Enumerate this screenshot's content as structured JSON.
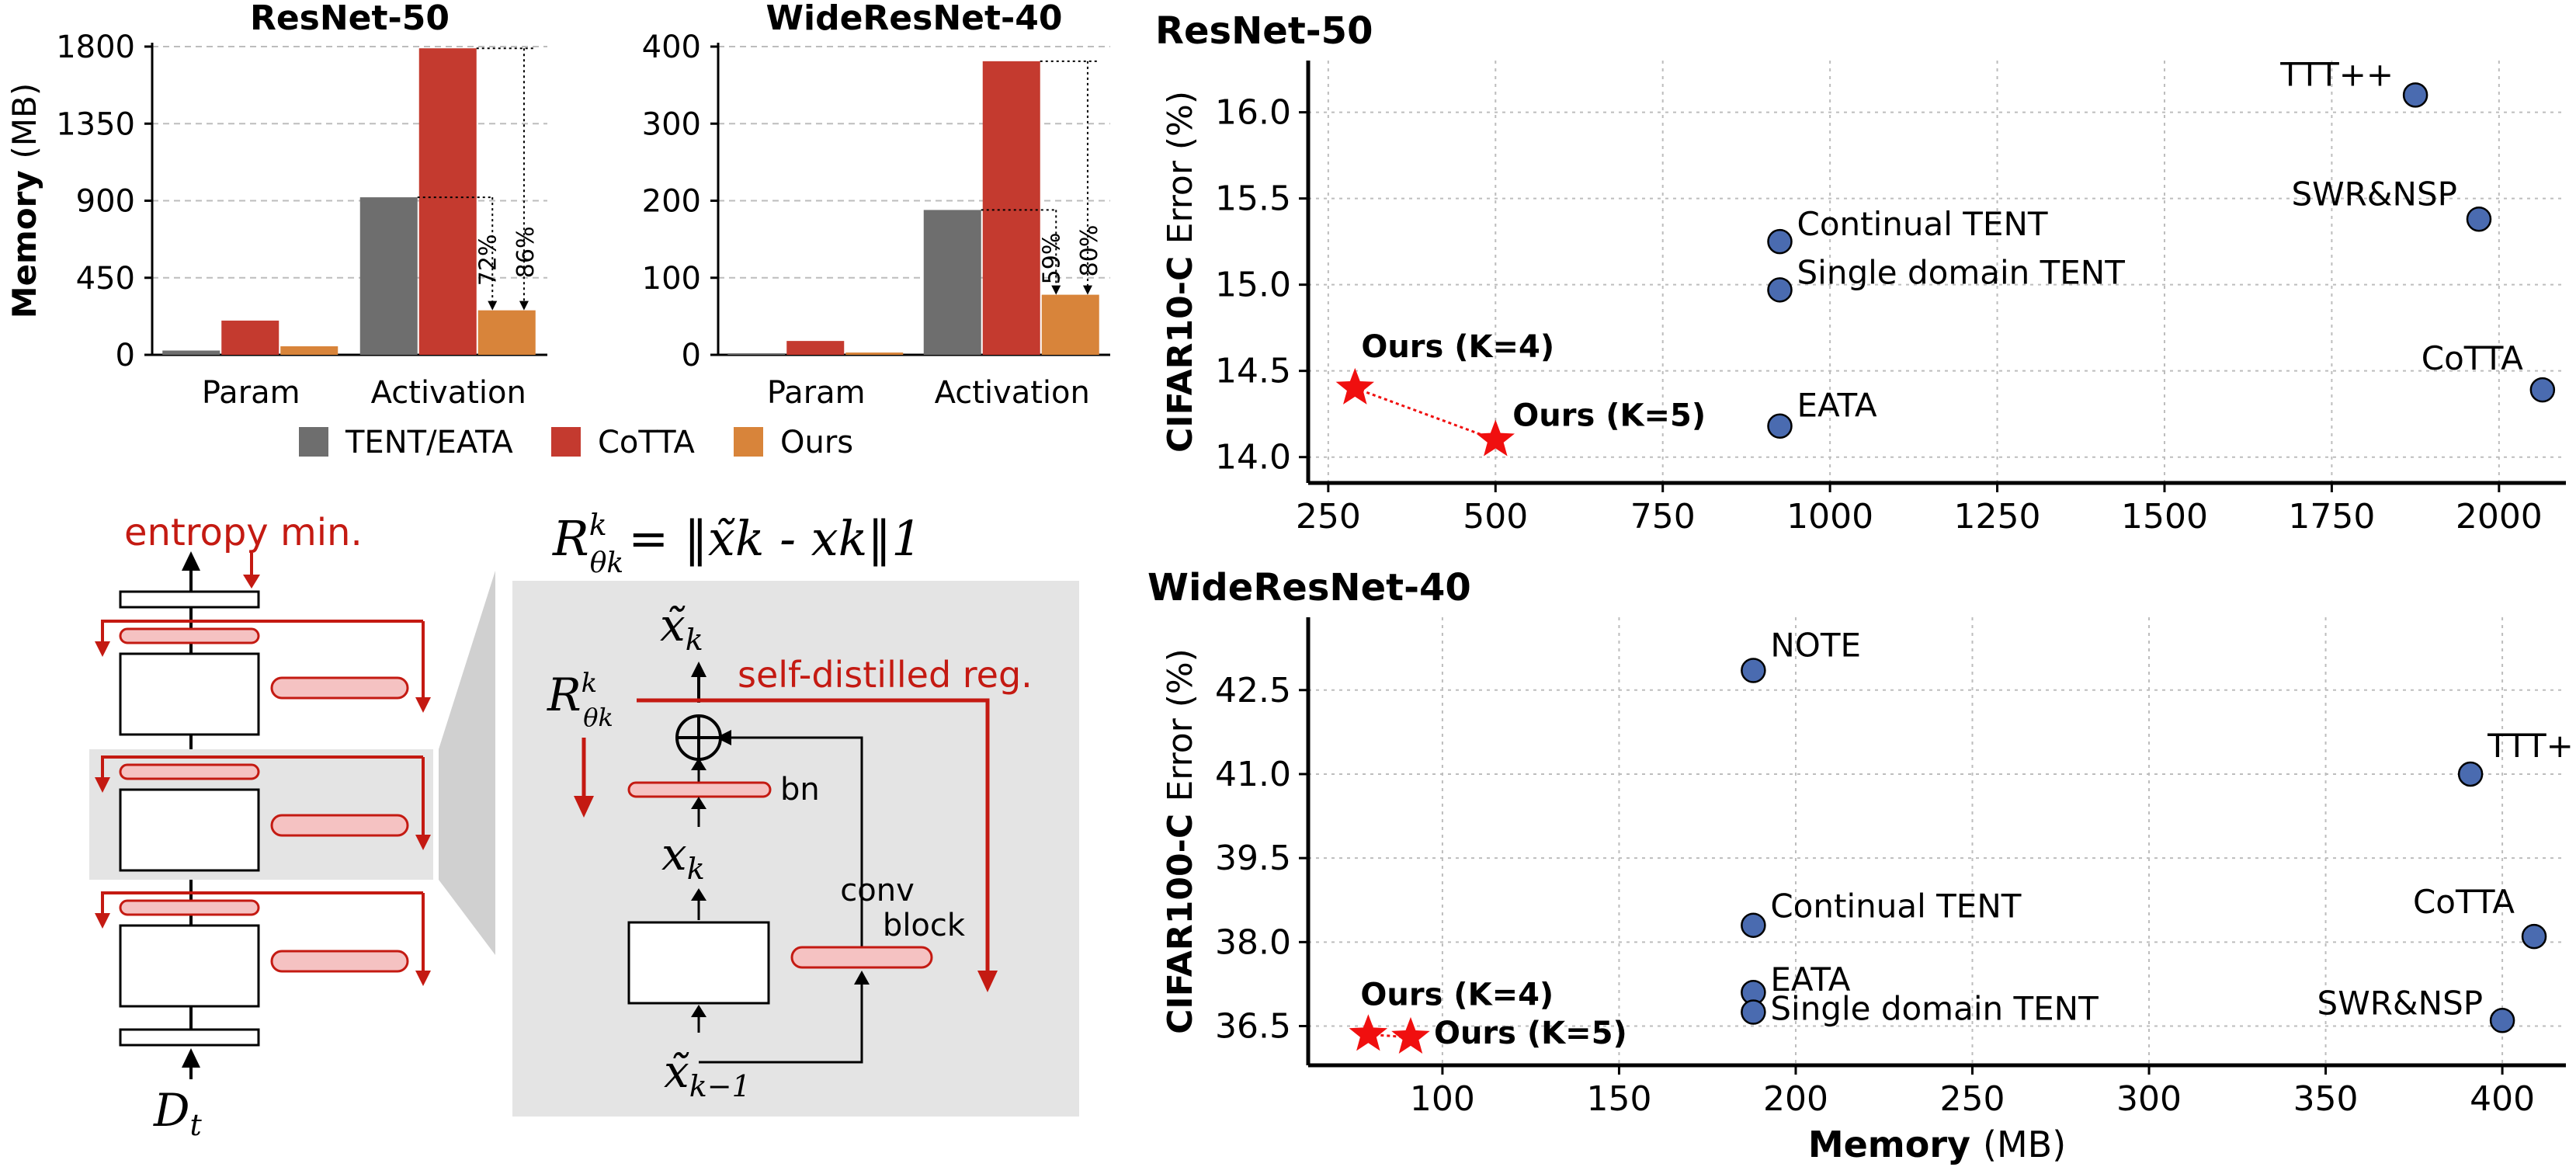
{
  "colors": {
    "tent": "#6e6e6e",
    "cotta": "#c43a2f",
    "ours": "#d8843a",
    "scatter_point": "#4a6bb0",
    "star": "#f00f0f",
    "accent_red": "#c41a12",
    "grid": "#bdbdbd",
    "diagram_bg": "#e4e4e4"
  },
  "diagram": {
    "entropy_label": "entropy min.",
    "input_label": "D",
    "input_sub": "t",
    "formula_lhs": "R",
    "formula_sub": "θk",
    "formula_sup": "k",
    "formula_rhs": "= ‖x̃k - xk‖1",
    "out_label": "x̃",
    "out_sub": "k",
    "mid_label": "x",
    "mid_sub": "k",
    "in_label": "x̃",
    "in_sub": "k−1",
    "reg_label": "self-distilled reg.",
    "bn_label": "bn",
    "conv_label_1": "conv",
    "conv_label_2": "block",
    "side_R": "R",
    "side_R_sub": "θk",
    "side_R_sup": "k"
  },
  "chart_data": [
    {
      "type": "bar",
      "title": "ResNet-50",
      "ylabel": "Memory",
      "ylabel_unit": "(MB)",
      "categories": [
        "Param",
        "Activation"
      ],
      "ylim": [
        0,
        1800
      ],
      "yticks": [
        0,
        450,
        900,
        1350,
        1800
      ],
      "grid": true,
      "series": [
        {
          "name": "TENT/EATA",
          "values": [
            25,
            920
          ]
        },
        {
          "name": "CoTTA",
          "values": [
            200,
            1790
          ]
        },
        {
          "name": "Ours",
          "values": [
            50,
            260
          ]
        }
      ],
      "annotations": [
        "72%",
        "86%"
      ]
    },
    {
      "type": "bar",
      "title": "WideResNet-40",
      "categories": [
        "Param",
        "Activation"
      ],
      "ylim": [
        0,
        400
      ],
      "yticks": [
        0,
        100,
        200,
        300,
        400
      ],
      "grid": true,
      "series": [
        {
          "name": "TENT/EATA",
          "values": [
            2,
            188
          ]
        },
        {
          "name": "CoTTA",
          "values": [
            18,
            381
          ]
        },
        {
          "name": "Ours",
          "values": [
            3,
            78
          ]
        }
      ],
      "annotations": [
        "59%",
        "80%"
      ],
      "legend": [
        "TENT/EATA",
        "CoTTA",
        "Ours"
      ],
      "legend_position": "bottom"
    },
    {
      "type": "scatter",
      "title": "ResNet-50",
      "ylabel_bold": "CIFAR10-C",
      "ylabel_rest": "Error (%)",
      "xlim": [
        220,
        2100
      ],
      "ylim": [
        13.85,
        16.3
      ],
      "xticks": [
        250,
        500,
        750,
        1000,
        1250,
        1500,
        1750,
        2000
      ],
      "yticks": [
        "14.0",
        "14.5",
        "15.0",
        "15.5",
        "16.0"
      ],
      "grid": true,
      "points": [
        {
          "label": "TTT++",
          "x": 1875,
          "y": 16.1
        },
        {
          "label": "SWR&NSP",
          "x": 1970,
          "y": 15.38
        },
        {
          "label": "Continual TENT",
          "x": 925,
          "y": 15.25
        },
        {
          "label": "Single domain TENT",
          "x": 925,
          "y": 14.97
        },
        {
          "label": "EATA",
          "x": 925,
          "y": 14.18
        },
        {
          "label": "CoTTA",
          "x": 2065,
          "y": 14.39
        }
      ],
      "ours": [
        {
          "label": "Ours (K=4)",
          "x": 290,
          "y": 14.4
        },
        {
          "label": "Ours (K=5)",
          "x": 500,
          "y": 14.1
        }
      ]
    },
    {
      "type": "scatter",
      "title": "WideResNet-40",
      "ylabel_bold": "CIFAR100-C",
      "ylabel_rest": "Error (%)",
      "xlabel_bold": "Memory",
      "xlabel_rest": "(MB)",
      "xlim": [
        62,
        418
      ],
      "ylim": [
        35.8,
        43.8
      ],
      "xticks": [
        100,
        150,
        200,
        250,
        300,
        350,
        400
      ],
      "yticks": [
        "36.5",
        "38.0",
        "39.5",
        "41.0",
        "42.5"
      ],
      "grid": true,
      "points": [
        {
          "label": "NOTE",
          "x": 188,
          "y": 42.85
        },
        {
          "label": "TTT++",
          "x": 391,
          "y": 41.0
        },
        {
          "label": "Continual TENT",
          "x": 188,
          "y": 38.3
        },
        {
          "label": "CoTTA",
          "x": 409,
          "y": 38.1
        },
        {
          "label": "EATA",
          "x": 188,
          "y": 37.1
        },
        {
          "label": "Single domain TENT",
          "x": 188,
          "y": 36.75
        },
        {
          "label": "SWR&NSP",
          "x": 400,
          "y": 36.6
        }
      ],
      "ours": [
        {
          "label": "Ours (K=4)",
          "x": 79,
          "y": 36.35
        },
        {
          "label": "Ours (K=5)",
          "x": 91,
          "y": 36.3
        }
      ]
    }
  ]
}
